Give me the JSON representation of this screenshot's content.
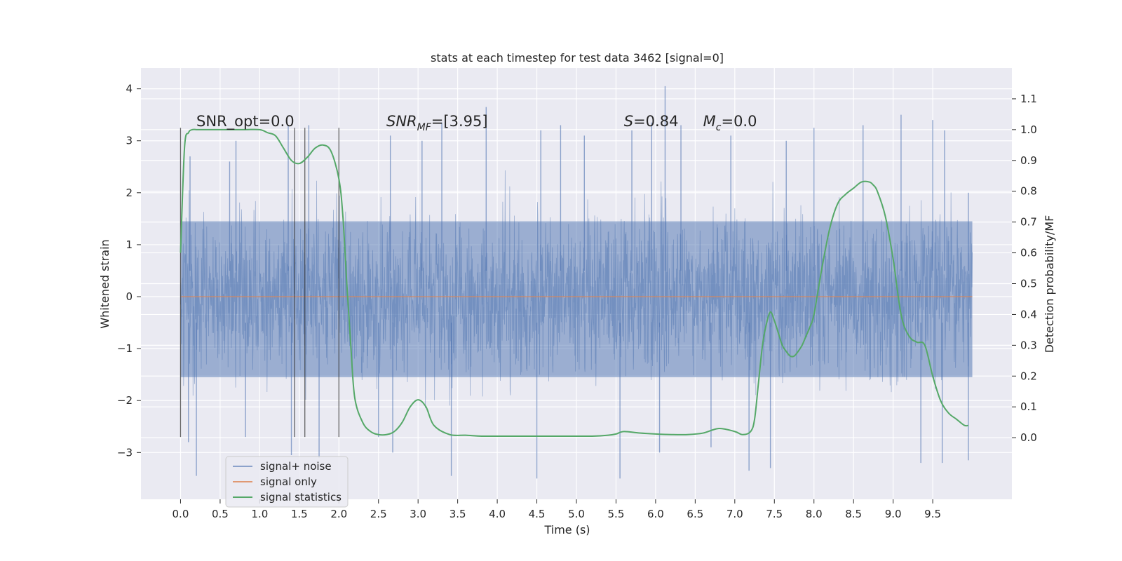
{
  "chart_data": {
    "type": "line",
    "title": "stats at each timestep for test data 3462 [signal=0]",
    "xlabel": "Time (s)",
    "ylabel_left": "Whitened strain",
    "ylabel_right": "Detection probability/MF",
    "xlim": [
      -0.5,
      10.5
    ],
    "ylim_left": [
      -3.9,
      4.4
    ],
    "ylim_right": [
      -0.2,
      1.2
    ],
    "x_ticks": [
      0.0,
      0.5,
      1.0,
      1.5,
      2.0,
      2.5,
      3.0,
      3.5,
      4.0,
      4.5,
      5.0,
      5.5,
      6.0,
      6.5,
      7.0,
      7.5,
      8.0,
      8.5,
      9.0,
      9.5
    ],
    "x_tick_labels": [
      "0.0",
      "0.5",
      "1.0",
      "1.5",
      "2.0",
      "2.5",
      "3.0",
      "3.5",
      "4.0",
      "4.5",
      "5.0",
      "5.5",
      "6.0",
      "6.5",
      "7.0",
      "7.5",
      "8.0",
      "8.5",
      "9.0",
      "9.5"
    ],
    "y_ticks_left": [
      4,
      3,
      2,
      1,
      0,
      -1,
      -2,
      -3
    ],
    "y_tick_labels_left": [
      "4",
      "3",
      "2",
      "1",
      "0",
      "−1",
      "−2",
      "−3"
    ],
    "y_ticks_right": [
      1.1,
      1.0,
      0.9,
      0.8,
      0.7,
      0.6,
      0.5,
      0.4,
      0.3,
      0.2,
      0.1,
      0.0
    ],
    "y_tick_labels_right": [
      "1.1",
      "1.0",
      "0.9",
      "0.8",
      "0.7",
      "0.6",
      "0.5",
      "0.4",
      "0.3",
      "0.2",
      "0.1",
      "0.0"
    ],
    "grid": true,
    "legend_position": "lower-left",
    "colors": {
      "background": "#eaeaf2",
      "grid": "#ffffff",
      "signal_noise": "#4c72b0",
      "signal_only": "#dd8452",
      "signal_statistics": "#55a868",
      "marker": "#333333"
    },
    "series": [
      {
        "name": "signal+ noise",
        "axis": "left",
        "kind": "noise",
        "x_range": [
          0.0,
          10.0
        ],
        "core_band": [
          -1.55,
          1.45
        ],
        "peaks": [
          {
            "x": 0.12,
            "y": 2.7
          },
          {
            "x": 0.62,
            "y": 2.6
          },
          {
            "x": 0.7,
            "y": 3.0
          },
          {
            "x": 1.36,
            "y": 3.3
          },
          {
            "x": 1.62,
            "y": 3.3
          },
          {
            "x": 2.65,
            "y": 3.1
          },
          {
            "x": 3.05,
            "y": 3.0
          },
          {
            "x": 3.3,
            "y": 3.35
          },
          {
            "x": 3.86,
            "y": 3.65
          },
          {
            "x": 4.55,
            "y": 3.2
          },
          {
            "x": 4.8,
            "y": 3.3
          },
          {
            "x": 5.1,
            "y": 3.1
          },
          {
            "x": 5.7,
            "y": 3.2
          },
          {
            "x": 5.95,
            "y": 3.35
          },
          {
            "x": 6.12,
            "y": 4.05
          },
          {
            "x": 6.32,
            "y": 3.3
          },
          {
            "x": 6.95,
            "y": 3.1
          },
          {
            "x": 7.65,
            "y": 3.0
          },
          {
            "x": 8.0,
            "y": 3.25
          },
          {
            "x": 8.62,
            "y": 3.3
          },
          {
            "x": 9.1,
            "y": 3.5
          },
          {
            "x": 9.5,
            "y": 3.4
          },
          {
            "x": 9.65,
            "y": 3.2
          },
          {
            "x": 9.95,
            "y": 2.0
          }
        ],
        "troughs": [
          {
            "x": 0.1,
            "y": -2.8
          },
          {
            "x": 0.2,
            "y": -3.45
          },
          {
            "x": 0.82,
            "y": -2.7
          },
          {
            "x": 1.4,
            "y": -3.05
          },
          {
            "x": 1.75,
            "y": -3.1
          },
          {
            "x": 2.5,
            "y": -2.7
          },
          {
            "x": 2.68,
            "y": -3.0
          },
          {
            "x": 3.42,
            "y": -3.45
          },
          {
            "x": 4.5,
            "y": -3.5
          },
          {
            "x": 5.55,
            "y": -3.5
          },
          {
            "x": 6.05,
            "y": -3.0
          },
          {
            "x": 6.7,
            "y": -2.9
          },
          {
            "x": 7.18,
            "y": -3.35
          },
          {
            "x": 7.45,
            "y": -3.3
          },
          {
            "x": 9.35,
            "y": -3.2
          },
          {
            "x": 9.62,
            "y": -3.2
          },
          {
            "x": 9.95,
            "y": -3.15
          }
        ]
      },
      {
        "name": "signal only",
        "axis": "left",
        "x": [
          0.0,
          10.0
        ],
        "y": [
          0.0,
          0.0
        ]
      },
      {
        "name": "signal statistics",
        "axis": "right",
        "x": [
          0.0,
          0.05,
          0.1,
          0.15,
          0.2,
          0.3,
          0.5,
          0.8,
          1.0,
          1.1,
          1.2,
          1.3,
          1.4,
          1.5,
          1.6,
          1.7,
          1.8,
          1.9,
          2.0,
          2.05,
          2.1,
          2.15,
          2.2,
          2.3,
          2.4,
          2.5,
          2.6,
          2.7,
          2.8,
          2.9,
          3.0,
          3.1,
          3.2,
          3.4,
          3.6,
          3.8,
          4.0,
          4.5,
          5.0,
          5.2,
          5.4,
          5.5,
          5.6,
          5.8,
          6.0,
          6.2,
          6.4,
          6.6,
          6.8,
          7.0,
          7.1,
          7.2,
          7.25,
          7.3,
          7.35,
          7.4,
          7.45,
          7.5,
          7.55,
          7.6,
          7.65,
          7.7,
          7.75,
          7.8,
          7.85,
          7.9,
          7.95,
          8.0,
          8.1,
          8.2,
          8.3,
          8.4,
          8.5,
          8.6,
          8.7,
          8.75,
          8.8,
          8.9,
          9.0,
          9.1,
          9.2,
          9.3,
          9.4,
          9.5,
          9.6,
          9.7,
          9.8,
          9.9,
          9.95
        ],
        "y": [
          0.6,
          0.94,
          0.99,
          1.0,
          1.0,
          1.0,
          1.0,
          1.0,
          1.0,
          0.99,
          0.98,
          0.94,
          0.9,
          0.89,
          0.91,
          0.94,
          0.95,
          0.93,
          0.84,
          0.72,
          0.5,
          0.3,
          0.13,
          0.05,
          0.02,
          0.01,
          0.01,
          0.02,
          0.05,
          0.1,
          0.123,
          0.1,
          0.04,
          0.01,
          0.008,
          0.005,
          0.005,
          0.005,
          0.005,
          0.005,
          0.008,
          0.012,
          0.02,
          0.015,
          0.012,
          0.01,
          0.01,
          0.015,
          0.03,
          0.02,
          0.01,
          0.02,
          0.06,
          0.18,
          0.3,
          0.37,
          0.408,
          0.38,
          0.34,
          0.3,
          0.28,
          0.265,
          0.265,
          0.28,
          0.3,
          0.33,
          0.36,
          0.4,
          0.55,
          0.68,
          0.76,
          0.79,
          0.81,
          0.83,
          0.83,
          0.82,
          0.8,
          0.72,
          0.58,
          0.4,
          0.33,
          0.31,
          0.3,
          0.2,
          0.12,
          0.08,
          0.06,
          0.04,
          0.04
        ]
      }
    ],
    "markers": {
      "x": [
        0.0,
        1.44,
        1.57,
        2.0
      ],
      "y_range": [
        -2.7,
        3.25
      ]
    },
    "annotations": [
      {
        "text": "SNR_opt=0.0",
        "x": 0.2,
        "y": 3.25
      },
      {
        "text": "SNR",
        "sub": "MF",
        "suffix": "=[3.95]",
        "x": 2.6,
        "y": 3.25
      },
      {
        "text": "S",
        "suffix": "=0.84",
        "x": 5.6,
        "y": 3.25
      },
      {
        "text": "M",
        "sub": "c",
        "suffix": "=0.0",
        "x": 6.6,
        "y": 3.25
      }
    ]
  }
}
